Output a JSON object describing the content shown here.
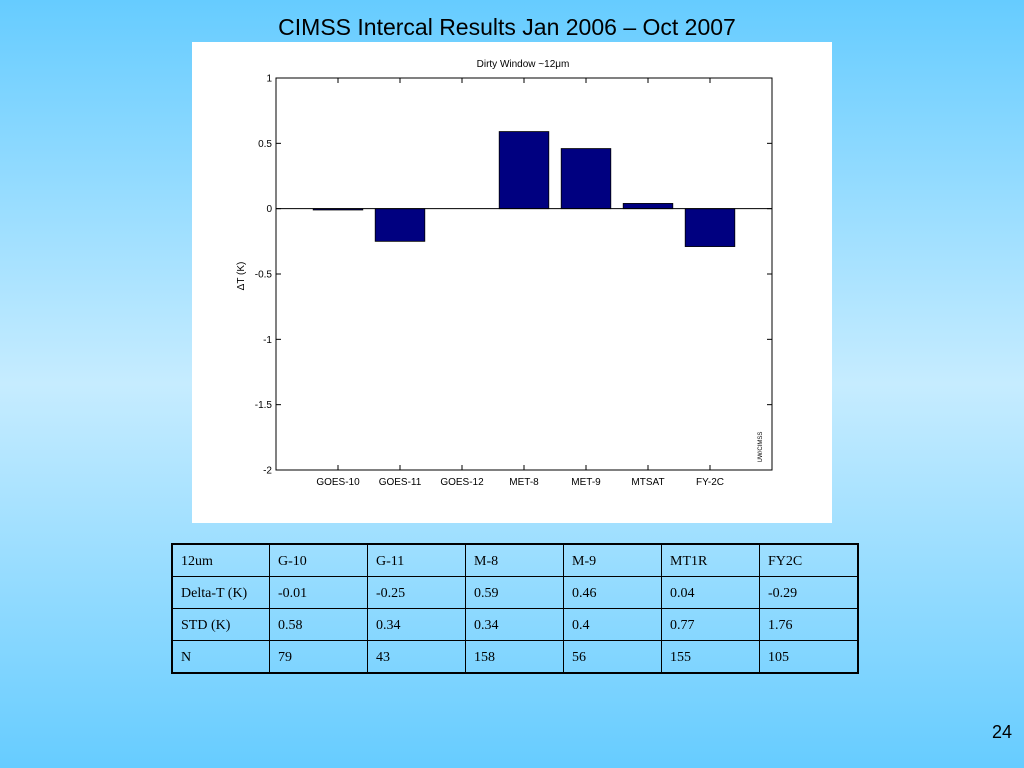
{
  "slide": {
    "title": "CIMSS Intercal Results Jan 2006 – Oct 2007",
    "page_number": "24"
  },
  "chart_data": {
    "type": "bar",
    "title": "Dirty Window ~12μm",
    "xlabel": "",
    "ylabel": "ΔT (K)",
    "categories": [
      "GOES-10",
      "GOES-11",
      "GOES-12",
      "MET-8",
      "MET-9",
      "MTSAT",
      "FY-2C"
    ],
    "values": [
      -0.01,
      -0.25,
      0,
      0.59,
      0.46,
      0.04,
      -0.29
    ],
    "ylim": [
      -2,
      1
    ],
    "yticks": [
      1,
      0.5,
      0,
      -0.5,
      -1,
      -1.5,
      -2
    ],
    "ytick_labels": [
      "1",
      "0.5",
      "0",
      "-0.5",
      "-1",
      "-1.5",
      "-2"
    ],
    "bar_color": "#000080",
    "grid": false,
    "watermark": "UW/CIMSS"
  },
  "table": {
    "rows": [
      [
        "12um",
        "G-10",
        "G-11",
        "M-8",
        "M-9",
        "MT1R",
        "FY2C"
      ],
      [
        "Delta-T (K)",
        "-0.01",
        "-0.25",
        "0.59",
        "0.46",
        "0.04",
        "-0.29"
      ],
      [
        "STD (K)",
        "0.58",
        "0.34",
        "0.34",
        "0.4",
        "0.77",
        "1.76"
      ],
      [
        "N",
        "79",
        "43",
        "158",
        "56",
        "155",
        "105"
      ]
    ]
  }
}
